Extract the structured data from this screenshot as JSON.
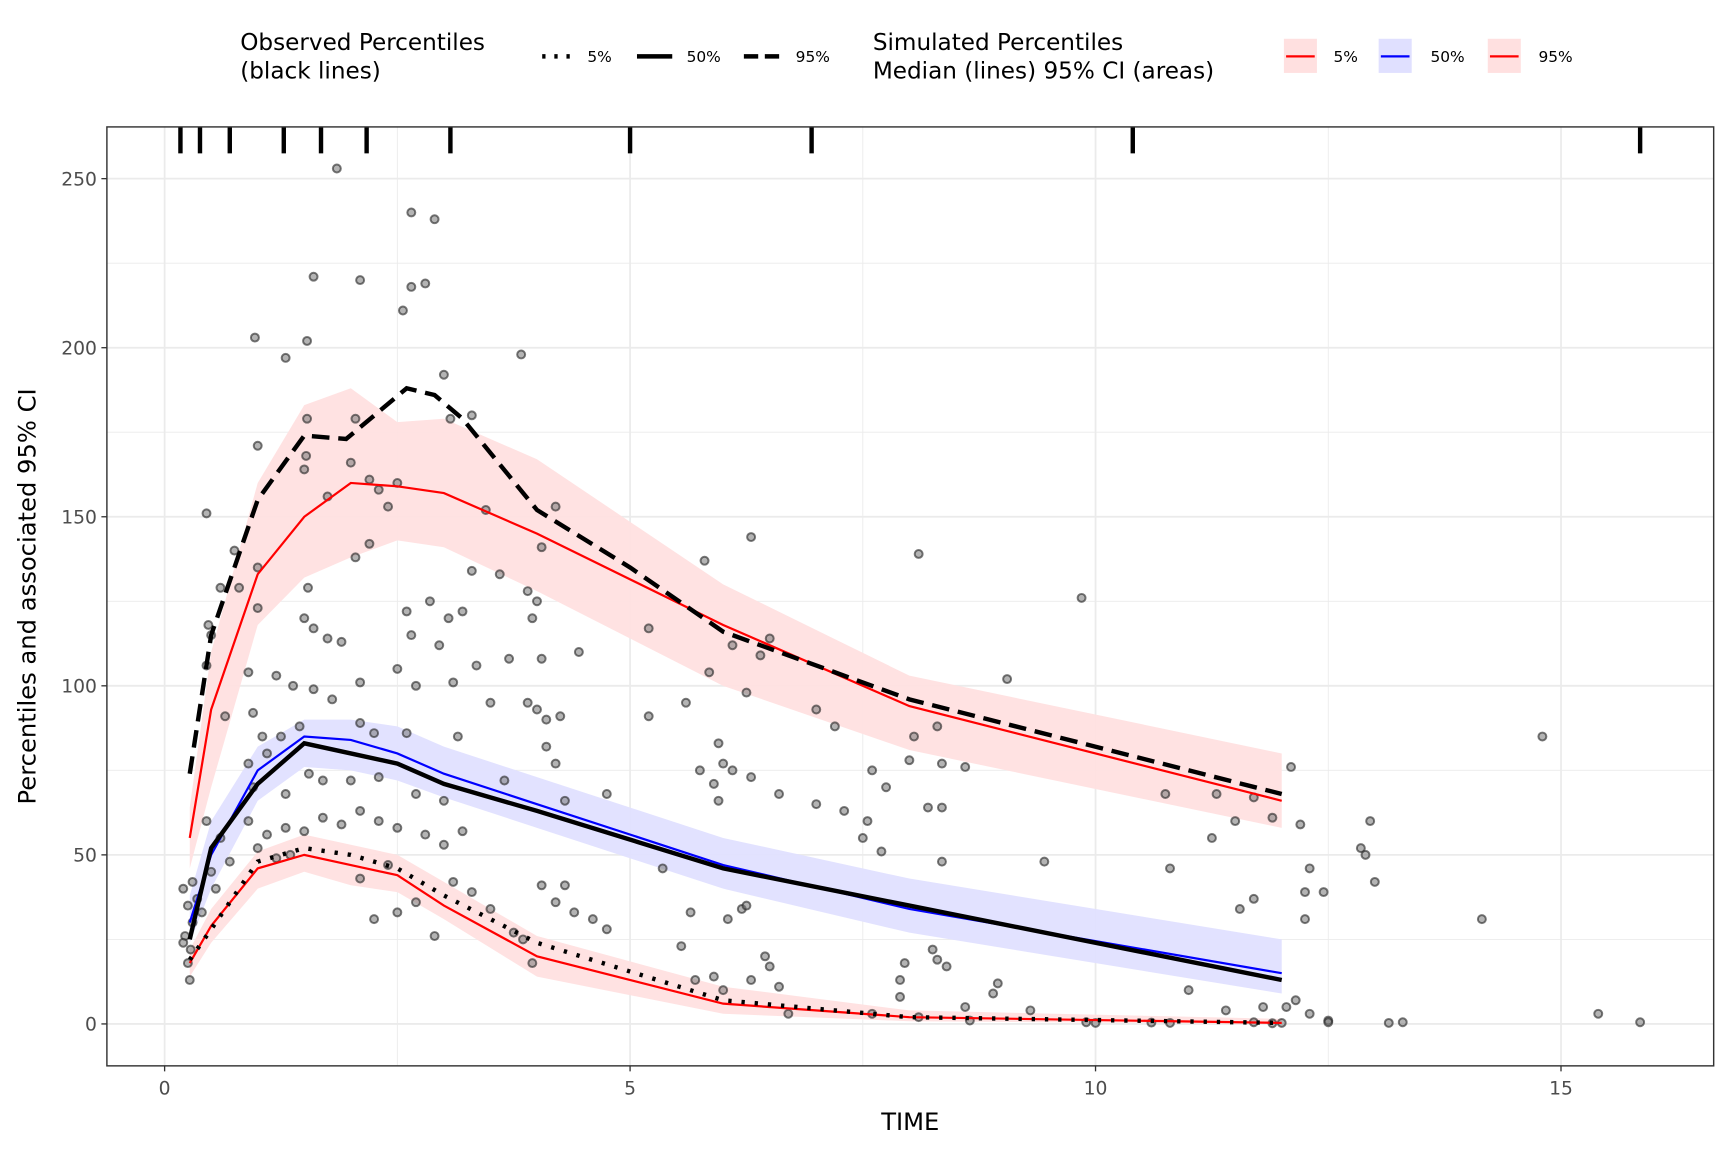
{
  "legend": {
    "observed_title_1": "Observed Percentiles",
    "observed_title_2": "(black lines)",
    "observed_keys": [
      "5%",
      "50%",
      "95%"
    ],
    "simulated_title_1": "Simulated Percentiles",
    "simulated_title_2": "Median (lines) 95% CI (areas)",
    "simulated_keys": [
      "5%",
      "50%",
      "95%"
    ]
  },
  "colors": {
    "sim_5": "#ff0000",
    "sim_50": "#0000ff",
    "sim_95": "#ff0000",
    "band_5": "#ffe0e0",
    "band_50": "#e0e0ff",
    "band_95": "#ffe0e0"
  },
  "chart_data": {
    "type": "line",
    "xlabel": "TIME",
    "ylabel": "Percentiles and associated 95% CI",
    "xlim": [
      -0.62,
      16.64
    ],
    "ylim": [
      -12.4,
      265.3
    ],
    "xticks": [
      0,
      5,
      10,
      15
    ],
    "yticks": [
      0,
      50,
      100,
      150,
      200,
      250
    ],
    "grid": true,
    "legend_position": "top",
    "bin_boundaries": [
      0.17,
      0.38,
      0.7,
      1.28,
      1.68,
      2.17,
      3.07,
      5.0,
      6.95,
      10.4,
      15.85
    ],
    "bins_x": [
      0.27,
      0.5,
      1.0,
      1.5,
      2.0,
      2.5,
      3.0,
      4.0,
      6.0,
      8.0,
      12.0
    ],
    "observed": {
      "p5": [
        [
          0.27,
          19
        ],
        [
          0.5,
          28
        ],
        [
          1.0,
          48
        ],
        [
          1.5,
          52
        ],
        [
          2.0,
          50
        ],
        [
          2.5,
          46
        ],
        [
          3.0,
          38
        ],
        [
          4.0,
          24
        ],
        [
          6.0,
          7
        ],
        [
          8.0,
          2
        ],
        [
          12.0,
          0.3
        ]
      ],
      "p50": [
        [
          0.27,
          25
        ],
        [
          0.5,
          52
        ],
        [
          1.0,
          71
        ],
        [
          1.5,
          83
        ],
        [
          2.0,
          80
        ],
        [
          2.5,
          77
        ],
        [
          3.0,
          71
        ],
        [
          4.0,
          63
        ],
        [
          6.0,
          46
        ],
        [
          8.0,
          35
        ],
        [
          12.0,
          13
        ]
      ],
      "p95": [
        [
          0.27,
          74
        ],
        [
          0.5,
          115
        ],
        [
          1.0,
          155
        ],
        [
          1.5,
          174
        ],
        [
          1.95,
          173
        ],
        [
          2.6,
          188
        ],
        [
          2.9,
          186
        ],
        [
          3.2,
          179
        ],
        [
          4.0,
          152
        ],
        [
          5.0,
          135
        ],
        [
          6.0,
          116
        ],
        [
          8.0,
          96
        ],
        [
          12.0,
          68
        ]
      ]
    },
    "simulated": {
      "p5": {
        "median": [
          18,
          29,
          46,
          50,
          47,
          44,
          35,
          20,
          6,
          2,
          0.3
        ],
        "lower": [
          14,
          24,
          40,
          45,
          41,
          39,
          31,
          14,
          3,
          0.8,
          0
        ],
        "upper": [
          22,
          34,
          51,
          56,
          53,
          50,
          42,
          26,
          11,
          4,
          1.5
        ]
      },
      "p50": {
        "median": [
          30,
          50,
          75,
          85,
          84,
          80,
          74,
          65,
          47,
          34,
          15
        ],
        "lower": [
          24,
          40,
          66,
          76,
          75,
          72,
          67,
          58,
          40,
          27,
          9
        ],
        "upper": [
          38,
          60,
          82,
          90,
          90,
          88,
          82,
          73,
          55,
          43,
          25
        ]
      },
      "p95": {
        "median": [
          55,
          93,
          133,
          150,
          160,
          159,
          157,
          145,
          118,
          94,
          66
        ],
        "lower": [
          46,
          70,
          118,
          132,
          138,
          143,
          141,
          128,
          100,
          81,
          58
        ],
        "upper": [
          64,
          110,
          160,
          183,
          188,
          178,
          179,
          167,
          130,
          103,
          80
        ]
      }
    },
    "points": [
      [
        1.85,
        253
      ],
      [
        2.65,
        240
      ],
      [
        2.9,
        238
      ],
      [
        1.6,
        221
      ],
      [
        2.1,
        220
      ],
      [
        2.8,
        219
      ],
      [
        2.65,
        218
      ],
      [
        2.56,
        211
      ],
      [
        0.97,
        203
      ],
      [
        1.53,
        202
      ],
      [
        1.3,
        197
      ],
      [
        3.0,
        192
      ],
      [
        3.83,
        198
      ],
      [
        1.0,
        171
      ],
      [
        1.53,
        179
      ],
      [
        2.05,
        179
      ],
      [
        3.07,
        179
      ],
      [
        3.3,
        180
      ],
      [
        1.52,
        168
      ],
      [
        2.0,
        166
      ],
      [
        1.5,
        164
      ],
      [
        2.2,
        161
      ],
      [
        2.5,
        160
      ],
      [
        2.3,
        158
      ],
      [
        1.75,
        156
      ],
      [
        0.45,
        151
      ],
      [
        3.45,
        152
      ],
      [
        4.2,
        153
      ],
      [
        2.4,
        153
      ],
      [
        2.2,
        142
      ],
      [
        2.05,
        138
      ],
      [
        1.0,
        135
      ],
      [
        0.75,
        140
      ],
      [
        4.05,
        141
      ],
      [
        0.8,
        129
      ],
      [
        3.3,
        134
      ],
      [
        3.6,
        133
      ],
      [
        3.9,
        128
      ],
      [
        0.6,
        129
      ],
      [
        1.0,
        123
      ],
      [
        3.2,
        122
      ],
      [
        2.6,
        122
      ],
      [
        1.54,
        129
      ],
      [
        2.85,
        125
      ],
      [
        6.3,
        144
      ],
      [
        8.1,
        139
      ],
      [
        5.8,
        137
      ],
      [
        9.85,
        126
      ],
      [
        0.47,
        118
      ],
      [
        0.5,
        115
      ],
      [
        0.45,
        106
      ],
      [
        3.05,
        120
      ],
      [
        3.95,
        120
      ],
      [
        4.0,
        125
      ],
      [
        5.2,
        117
      ],
      [
        1.6,
        117
      ],
      [
        1.9,
        113
      ],
      [
        1.75,
        114
      ],
      [
        1.5,
        120
      ],
      [
        2.65,
        115
      ],
      [
        2.95,
        112
      ],
      [
        6.5,
        114
      ],
      [
        6.1,
        112
      ],
      [
        6.4,
        109
      ],
      [
        4.45,
        110
      ],
      [
        4.05,
        108
      ],
      [
        3.7,
        108
      ],
      [
        3.35,
        106
      ],
      [
        0.9,
        104
      ],
      [
        1.2,
        103
      ],
      [
        1.38,
        100
      ],
      [
        1.6,
        99
      ],
      [
        1.8,
        96
      ],
      [
        2.1,
        101
      ],
      [
        2.5,
        105
      ],
      [
        2.7,
        100
      ],
      [
        3.1,
        101
      ],
      [
        3.5,
        95
      ],
      [
        4.0,
        93
      ],
      [
        4.1,
        90
      ],
      [
        4.25,
        91
      ],
      [
        5.6,
        95
      ],
      [
        5.85,
        104
      ],
      [
        6.25,
        98
      ],
      [
        7.0,
        93
      ],
      [
        7.2,
        88
      ],
      [
        9.05,
        102
      ],
      [
        14.8,
        85
      ],
      [
        0.65,
        91
      ],
      [
        0.95,
        92
      ],
      [
        1.05,
        85
      ],
      [
        1.25,
        85
      ],
      [
        1.45,
        88
      ],
      [
        2.1,
        89
      ],
      [
        2.25,
        86
      ],
      [
        2.6,
        86
      ],
      [
        3.15,
        85
      ],
      [
        3.9,
        95
      ],
      [
        4.1,
        82
      ],
      [
        4.2,
        77
      ],
      [
        5.2,
        91
      ],
      [
        5.75,
        75
      ],
      [
        5.95,
        83
      ],
      [
        6.0,
        77
      ],
      [
        6.1,
        75
      ],
      [
        6.3,
        73
      ],
      [
        6.6,
        68
      ],
      [
        7.6,
        75
      ],
      [
        7.75,
        70
      ],
      [
        8.0,
        78
      ],
      [
        8.05,
        85
      ],
      [
        8.3,
        88
      ],
      [
        8.35,
        77
      ],
      [
        8.6,
        76
      ],
      [
        12.1,
        76
      ],
      [
        0.9,
        77
      ],
      [
        1.1,
        80
      ],
      [
        0.95,
        70
      ],
      [
        1.3,
        68
      ],
      [
        1.55,
        74
      ],
      [
        1.7,
        72
      ],
      [
        2.0,
        72
      ],
      [
        2.3,
        73
      ],
      [
        2.7,
        68
      ],
      [
        3.0,
        66
      ],
      [
        3.65,
        72
      ],
      [
        4.3,
        66
      ],
      [
        4.75,
        68
      ],
      [
        5.95,
        66
      ],
      [
        5.9,
        71
      ],
      [
        7.0,
        65
      ],
      [
        7.3,
        63
      ],
      [
        7.55,
        60
      ],
      [
        7.5,
        55
      ],
      [
        7.7,
        51
      ],
      [
        8.2,
        64
      ],
      [
        8.35,
        64
      ],
      [
        10.75,
        68
      ],
      [
        11.25,
        55
      ],
      [
        11.3,
        68
      ],
      [
        11.5,
        60
      ],
      [
        11.7,
        67
      ],
      [
        11.9,
        61
      ],
      [
        12.2,
        59
      ],
      [
        12.3,
        46
      ],
      [
        12.25,
        39
      ],
      [
        12.45,
        39
      ],
      [
        12.25,
        31
      ],
      [
        12.85,
        52
      ],
      [
        12.95,
        60
      ],
      [
        12.9,
        50
      ],
      [
        13.0,
        42
      ],
      [
        14.15,
        31
      ],
      [
        10.8,
        46
      ],
      [
        9.45,
        48
      ],
      [
        8.35,
        48
      ],
      [
        0.2,
        40
      ],
      [
        0.25,
        35
      ],
      [
        0.3,
        30
      ],
      [
        0.22,
        26
      ],
      [
        0.28,
        22
      ],
      [
        0.25,
        18
      ],
      [
        0.27,
        13
      ],
      [
        0.2,
        24
      ],
      [
        0.3,
        42
      ],
      [
        0.35,
        37
      ],
      [
        0.4,
        33
      ],
      [
        0.45,
        60
      ],
      [
        0.5,
        45
      ],
      [
        0.55,
        40
      ],
      [
        0.6,
        55
      ],
      [
        0.7,
        48
      ],
      [
        0.9,
        60
      ],
      [
        1.0,
        52
      ],
      [
        1.1,
        56
      ],
      [
        1.2,
        49
      ],
      [
        1.3,
        58
      ],
      [
        1.35,
        50
      ],
      [
        1.5,
        57
      ],
      [
        1.7,
        61
      ],
      [
        1.9,
        59
      ],
      [
        2.1,
        63
      ],
      [
        2.3,
        60
      ],
      [
        2.5,
        58
      ],
      [
        2.8,
        56
      ],
      [
        3.0,
        53
      ],
      [
        3.2,
        57
      ],
      [
        2.4,
        47
      ],
      [
        2.1,
        43
      ],
      [
        2.25,
        31
      ],
      [
        2.5,
        33
      ],
      [
        2.7,
        36
      ],
      [
        2.9,
        26
      ],
      [
        3.1,
        42
      ],
      [
        3.3,
        39
      ],
      [
        3.5,
        34
      ],
      [
        3.75,
        27
      ],
      [
        3.85,
        25
      ],
      [
        3.95,
        18
      ],
      [
        4.05,
        41
      ],
      [
        4.2,
        36
      ],
      [
        4.3,
        41
      ],
      [
        4.4,
        33
      ],
      [
        4.6,
        31
      ],
      [
        4.75,
        28
      ],
      [
        5.35,
        46
      ],
      [
        5.55,
        23
      ],
      [
        5.7,
        13
      ],
      [
        5.65,
        33
      ],
      [
        5.9,
        14
      ],
      [
        6.05,
        31
      ],
      [
        6.2,
        34
      ],
      [
        6.25,
        35
      ],
      [
        6.45,
        20
      ],
      [
        6.5,
        17
      ],
      [
        6.0,
        10
      ],
      [
        6.3,
        13
      ],
      [
        6.6,
        11
      ],
      [
        6.7,
        3
      ],
      [
        7.6,
        3
      ],
      [
        7.9,
        13
      ],
      [
        7.95,
        18
      ],
      [
        7.9,
        8
      ],
      [
        8.1,
        2
      ],
      [
        8.25,
        22
      ],
      [
        8.3,
        19
      ],
      [
        8.4,
        17
      ],
      [
        8.6,
        5
      ],
      [
        8.65,
        1
      ],
      [
        8.9,
        9
      ],
      [
        8.95,
        12
      ],
      [
        9.3,
        4
      ],
      [
        9.9,
        0.5
      ],
      [
        10.6,
        0.4
      ],
      [
        10.8,
        0.3
      ],
      [
        11.0,
        10
      ],
      [
        11.4,
        4
      ],
      [
        11.55,
        34
      ],
      [
        11.7,
        37
      ],
      [
        11.8,
        5
      ],
      [
        12.05,
        5
      ],
      [
        12.15,
        7
      ],
      [
        12.3,
        3
      ],
      [
        12.5,
        1
      ],
      [
        12.5,
        0.5
      ],
      [
        13.15,
        0.3
      ],
      [
        13.3,
        0.5
      ],
      [
        15.4,
        3
      ],
      [
        15.85,
        0.5
      ],
      [
        11.7,
        0.5
      ],
      [
        11.9,
        0.2
      ],
      [
        10.0,
        0.3
      ],
      [
        12.0,
        0.3
      ]
    ]
  }
}
